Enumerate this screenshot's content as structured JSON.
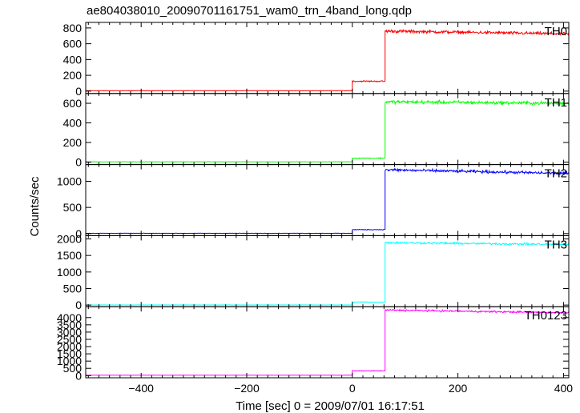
{
  "title": "ae804038010_20090701161751_wam0_trn_4band_long.qdp",
  "ylabel": "Counts/sec",
  "xlabel": "Time [sec] 0 = 2009/07/01 16:17:51",
  "chart_data": [
    {
      "type": "line",
      "label": "TH0",
      "color": "#ff0000",
      "xlim": [
        -505,
        410
      ],
      "ylim": [
        -30,
        870
      ],
      "yticks": [
        0,
        200,
        400,
        600,
        800
      ],
      "xticks": [
        -400,
        -200,
        0,
        200,
        400
      ],
      "segments": [
        {
          "x": [
            -505,
            0
          ],
          "level": 5,
          "noise": 3
        },
        {
          "x": [
            0,
            62
          ],
          "level": 125,
          "noise": 12
        },
        {
          "x": [
            62,
            410
          ],
          "level_start": 760,
          "level_end": 725,
          "noise": 28
        }
      ]
    },
    {
      "type": "line",
      "label": "TH1",
      "color": "#00ff00",
      "xlim": [
        -505,
        410
      ],
      "ylim": [
        -25,
        700
      ],
      "yticks": [
        0,
        200,
        400,
        600
      ],
      "xticks": [
        -400,
        -200,
        0,
        200,
        400
      ],
      "segments": [
        {
          "x": [
            -505,
            0
          ],
          "level": 3,
          "noise": 3
        },
        {
          "x": [
            0,
            62
          ],
          "level": 40,
          "noise": 8
        },
        {
          "x": [
            62,
            410
          ],
          "level_start": 615,
          "level_end": 600,
          "noise": 25
        }
      ]
    },
    {
      "type": "line",
      "label": "TH2",
      "color": "#0000ff",
      "xlim": [
        -505,
        410
      ],
      "ylim": [
        -40,
        1320
      ],
      "yticks": [
        0,
        500,
        1000
      ],
      "xticks": [
        -400,
        -200,
        0,
        200,
        400
      ],
      "segments": [
        {
          "x": [
            -505,
            0
          ],
          "level": 5,
          "noise": 4
        },
        {
          "x": [
            0,
            62
          ],
          "level": 75,
          "noise": 12
        },
        {
          "x": [
            62,
            410
          ],
          "level_start": 1220,
          "level_end": 1150,
          "noise": 40
        }
      ]
    },
    {
      "type": "line",
      "label": "TH3",
      "color": "#00ffff",
      "xlim": [
        -505,
        410
      ],
      "ylim": [
        -50,
        2100
      ],
      "yticks": [
        0,
        500,
        1000,
        1500,
        2000
      ],
      "xticks": [
        -400,
        -200,
        0,
        200,
        400
      ],
      "segments": [
        {
          "x": [
            -505,
            0
          ],
          "level": 3,
          "noise": 4
        },
        {
          "x": [
            0,
            62
          ],
          "level": 90,
          "noise": 15
        },
        {
          "x": [
            62,
            410
          ],
          "level_start": 1890,
          "level_end": 1830,
          "noise": 45
        }
      ]
    },
    {
      "type": "line",
      "label": "TH0123",
      "color": "#ff00ff",
      "xlim": [
        -505,
        410
      ],
      "ylim": [
        -150,
        4750
      ],
      "yticks": [
        0,
        500,
        1000,
        1500,
        2000,
        2500,
        3000,
        3500,
        4000
      ],
      "xticks": [
        -400,
        -200,
        0,
        200,
        400
      ],
      "segments": [
        {
          "x": [
            -505,
            0
          ],
          "level": 30,
          "noise": 10
        },
        {
          "x": [
            0,
            62
          ],
          "level": 330,
          "noise": 30
        },
        {
          "x": [
            62,
            410
          ],
          "level_start": 4520,
          "level_end": 4330,
          "noise": 90
        }
      ]
    }
  ]
}
